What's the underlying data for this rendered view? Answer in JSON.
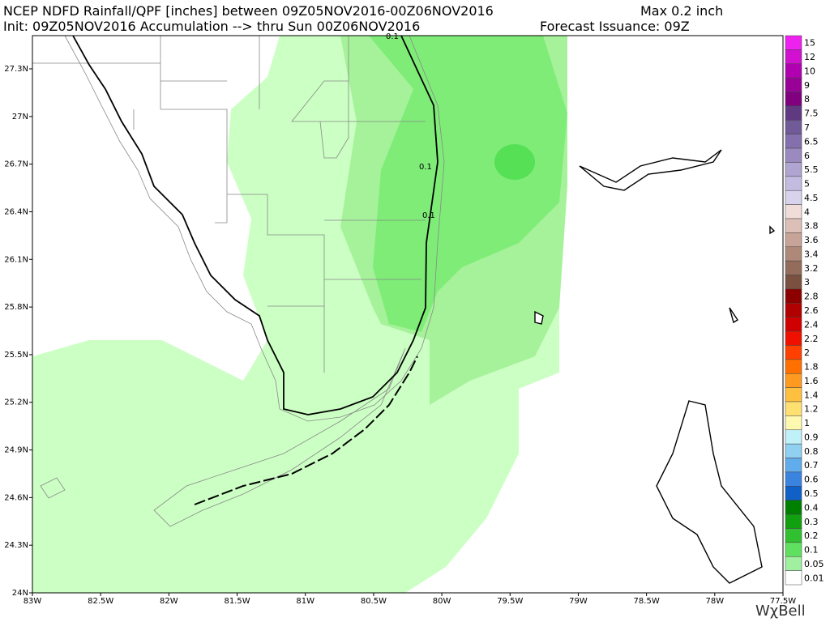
{
  "header": {
    "line1_left": "NCEP NDFD Rainfall/QPF [inches] between 09Z05NOV2016-00Z06NOV2016",
    "line1_right": "Max 0.2 inch",
    "line2_left": "Init: 09Z05NOV2016 Accumulation --> thru Sun 00Z06NOV2016",
    "line2_right": "Forecast Issuance: 09Z"
  },
  "map": {
    "lat_labels": [
      "27.3N",
      "27N",
      "26.7N",
      "26.4N",
      "26.1N",
      "25.8N",
      "25.5N",
      "25.2N",
      "24.9N",
      "24.6N",
      "24.3N",
      "24N"
    ],
    "lon_labels": [
      "83W",
      "82.5W",
      "82W",
      "81.5W",
      "81W",
      "80.5W",
      "80W",
      "79.5W",
      "79W",
      "78.5W",
      "78W",
      "77.5W"
    ],
    "contour_labels": [
      "0.1",
      "0.1",
      "0.1"
    ]
  },
  "colorbar": [
    {
      "label": "15",
      "color": "#ee22ee"
    },
    {
      "label": "12",
      "color": "#d011d0"
    },
    {
      "label": "10",
      "color": "#b000b0"
    },
    {
      "label": "9",
      "color": "#980098"
    },
    {
      "label": "8",
      "color": "#800080"
    },
    {
      "label": "7.5",
      "color": "#603a80"
    },
    {
      "label": "7",
      "color": "#705a98"
    },
    {
      "label": "6.5",
      "color": "#8470ac"
    },
    {
      "label": "6",
      "color": "#9a8ac0"
    },
    {
      "label": "5.5",
      "color": "#b0a4d0"
    },
    {
      "label": "5",
      "color": "#c4bce0"
    },
    {
      "label": "4.5",
      "color": "#d8d2ec"
    },
    {
      "label": "4",
      "color": "#f0dcd8"
    },
    {
      "label": "3.8",
      "color": "#dcc0b8"
    },
    {
      "label": "3.6",
      "color": "#c8a498"
    },
    {
      "label": "3.4",
      "color": "#ae8878"
    },
    {
      "label": "3.2",
      "color": "#946c5c"
    },
    {
      "label": "3",
      "color": "#7a5040"
    },
    {
      "label": "2.8",
      "color": "#8c0000"
    },
    {
      "label": "2.6",
      "color": "#b00000"
    },
    {
      "label": "2.4",
      "color": "#d00000"
    },
    {
      "label": "2.2",
      "color": "#f01000"
    },
    {
      "label": "2",
      "color": "#ff4000"
    },
    {
      "label": "1.8",
      "color": "#ff7000"
    },
    {
      "label": "1.6",
      "color": "#ff9a20"
    },
    {
      "label": "1.4",
      "color": "#ffc040"
    },
    {
      "label": "1.2",
      "color": "#ffe070"
    },
    {
      "label": "1",
      "color": "#fff8b0"
    },
    {
      "label": "0.9",
      "color": "#c0f0f8"
    },
    {
      "label": "0.8",
      "color": "#90d0f0"
    },
    {
      "label": "0.7",
      "color": "#60acec"
    },
    {
      "label": "0.6",
      "color": "#3a84e0"
    },
    {
      "label": "0.5",
      "color": "#1060c8"
    },
    {
      "label": "0.4",
      "color": "#008000"
    },
    {
      "label": "0.3",
      "color": "#10a010"
    },
    {
      "label": "0.2",
      "color": "#30c030"
    },
    {
      "label": "0.1",
      "color": "#60e060"
    },
    {
      "label": "0.05",
      "color": "#a0f0a0"
    },
    {
      "label": "0.01",
      "color": "#ffffff"
    }
  ],
  "brand": "WχBell"
}
